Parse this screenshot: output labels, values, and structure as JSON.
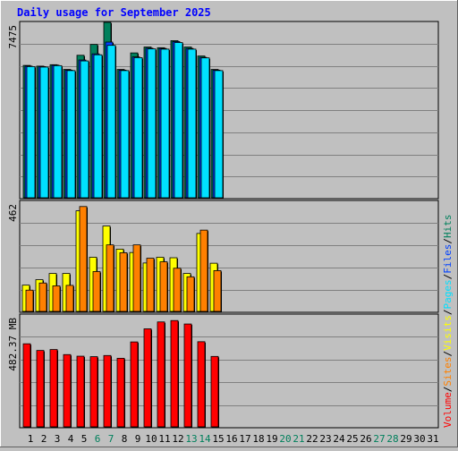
{
  "title": "Daily usage for September 2025",
  "colors": {
    "background": "#c0c0c0",
    "grid": "#808080",
    "hits": "#00805c",
    "files": "#0040ff",
    "pages": "#00e0ff",
    "visits": "#ffff00",
    "sites": "#ff8000",
    "volume": "#ff0000",
    "weekend_label": "#00805c",
    "weekday_label": "#000000",
    "title": "#0000ff"
  },
  "chart_data": [
    {
      "type": "bar",
      "panel": "top",
      "y_label": "7475",
      "ylim": [
        0,
        7475
      ],
      "days": [
        "1",
        "2",
        "3",
        "4",
        "5",
        "6",
        "7",
        "8",
        "9",
        "10",
        "11",
        "12",
        "13",
        "14",
        "15",
        "16",
        "17",
        "18",
        "19",
        "20",
        "21",
        "22",
        "23",
        "24",
        "25",
        "26",
        "27",
        "28",
        "29",
        "30",
        "31"
      ],
      "weekend_days": [
        "6",
        "7",
        "13",
        "14",
        "20",
        "21",
        "27",
        "28"
      ],
      "series": [
        {
          "name": "Hits",
          "values": [
            5650,
            5620,
            5680,
            5480,
            6080,
            6540,
            7475,
            5480,
            6180,
            6430,
            6400,
            6700,
            6430,
            6050,
            5480
          ]
        },
        {
          "name": "Files",
          "values": [
            5620,
            5600,
            5660,
            5450,
            5880,
            6140,
            6640,
            5450,
            6010,
            6380,
            6370,
            6660,
            6370,
            5990,
            5450
          ]
        },
        {
          "name": "Pages",
          "values": [
            5600,
            5580,
            5640,
            5430,
            5840,
            6100,
            6500,
            5430,
            5980,
            6350,
            6340,
            6620,
            6340,
            5970,
            5430
          ]
        }
      ]
    },
    {
      "type": "bar",
      "panel": "middle",
      "y_label": "462",
      "ylim": [
        0,
        462
      ],
      "series": [
        {
          "name": "Visits",
          "values": [
            114,
            137,
            163,
            163,
            426,
            231,
            362,
            265,
            251,
            207,
            231,
            229,
            163,
            331,
            206
          ]
        },
        {
          "name": "Sites",
          "values": [
            93,
            123,
            111,
            113,
            444,
            171,
            283,
            250,
            283,
            227,
            212,
            185,
            149,
            345,
            175
          ]
        }
      ]
    },
    {
      "type": "bar",
      "panel": "bottom",
      "y_label": "482.37 MB",
      "ylim": [
        0,
        482.37
      ],
      "series": [
        {
          "name": "Volume",
          "values": [
            365,
            336,
            340,
            318,
            311,
            309,
            314,
            302,
            373,
            430,
            460,
            466,
            451,
            374,
            310
          ]
        }
      ]
    }
  ],
  "right_legend": [
    {
      "text": "Volume",
      "color": "#ff0000"
    },
    {
      "text": "/",
      "color": "#000000"
    },
    {
      "text": "Sites",
      "color": "#ff8000"
    },
    {
      "text": "/",
      "color": "#000000"
    },
    {
      "text": "Visits",
      "color": "#ffff00"
    },
    {
      "text": "/",
      "color": "#000000"
    },
    {
      "text": "Pages",
      "color": "#00e0ff"
    },
    {
      "text": "/",
      "color": "#000000"
    },
    {
      "text": "Files",
      "color": "#0040ff"
    },
    {
      "text": "/",
      "color": "#000000"
    },
    {
      "text": "Hits",
      "color": "#00805c"
    }
  ]
}
